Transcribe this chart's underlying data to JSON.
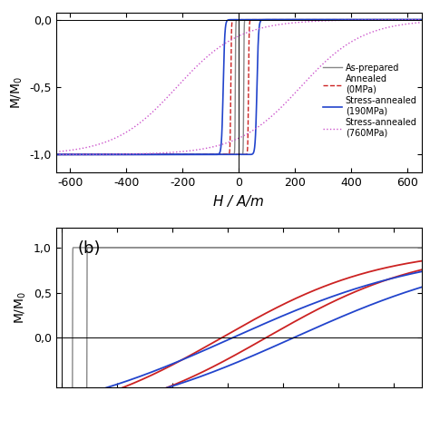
{
  "colors": {
    "as_prepared": "#888888",
    "annealed": "#cc2222",
    "stress_190": "#2244cc",
    "stress_760": "#cc55cc"
  },
  "xlim_a": [
    -650,
    650
  ],
  "ylim_a": [
    -1.13,
    0.05
  ],
  "ylim_a_full": [
    -1.13,
    0.3
  ],
  "xticks_a": [
    -600,
    -400,
    -200,
    0,
    200,
    400,
    600
  ],
  "yticks_a": [
    0.0,
    -0.5,
    -1.0
  ],
  "xlim_b": [
    -10,
    650
  ],
  "ylim_b": [
    -0.55,
    1.22
  ],
  "yticks_b": [
    0.0,
    0.5,
    1.0
  ],
  "legend_labels": [
    "As-prepared",
    "Annealed\n(0MPa)",
    "Stress-annealed\n(190MPa)",
    "Stress-annealed\n(760MPa)"
  ]
}
